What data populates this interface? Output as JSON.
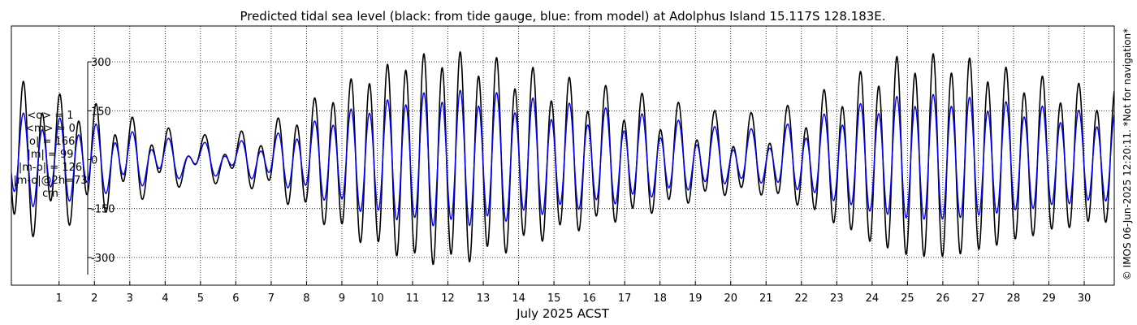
{
  "chart_data": {
    "type": "line",
    "title": "Predicted tidal sea level (black: from tide gauge, blue: from model) at Adolphus Island 15.117S 128.183E.",
    "xlabel": "July 2025 ACST",
    "ylabel": "",
    "x_ticks": [
      "1",
      "2",
      "3",
      "4",
      "5",
      "6",
      "7",
      "8",
      "9",
      "10",
      "11",
      "12",
      "13",
      "14",
      "15",
      "16",
      "17",
      "18",
      "19",
      "20",
      "21",
      "22",
      "23",
      "24",
      "25",
      "26",
      "27",
      "28",
      "29",
      "30"
    ],
    "x_range_days": [
      -0.35,
      30.85
    ],
    "y_ticks": [
      300,
      150,
      0,
      -150,
      -300
    ],
    "y_tick_labels": [
      "300",
      "150",
      "0",
      "-150",
      "-300"
    ],
    "ylim": [
      -385,
      410
    ],
    "grid": true,
    "colors": {
      "gauge": "#000000",
      "model": "#0000ff"
    },
    "series": [
      {
        "key": "gauge",
        "period_hours": 12.35,
        "diurnal_period_hours": 24.84,
        "semidiurnal_amplitude_by_day": [
          [
            -0.3,
            215
          ],
          [
            0.7,
            170
          ],
          [
            1.7,
            150
          ],
          [
            2.7,
            105
          ],
          [
            3.7,
            75
          ],
          [
            4.7,
            40
          ],
          [
            5.7,
            45
          ],
          [
            6.7,
            70
          ],
          [
            7.7,
            130
          ],
          [
            8.7,
            195
          ],
          [
            9.7,
            250
          ],
          [
            10.7,
            290
          ],
          [
            11.7,
            310
          ],
          [
            12.7,
            295
          ],
          [
            13.7,
            265
          ],
          [
            14.7,
            230
          ],
          [
            15.7,
            200
          ],
          [
            16.7,
            175
          ],
          [
            17.7,
            150
          ],
          [
            18.7,
            120
          ],
          [
            19.7,
            95
          ],
          [
            20.7,
            90
          ],
          [
            21.7,
            120
          ],
          [
            22.7,
            175
          ],
          [
            23.7,
            235
          ],
          [
            24.7,
            285
          ],
          [
            25.7,
            300
          ],
          [
            26.7,
            285
          ],
          [
            27.7,
            255
          ],
          [
            28.7,
            225
          ],
          [
            29.7,
            200
          ],
          [
            30.9,
            180
          ]
        ],
        "diurnal_amplitude_by_day": [
          [
            -0.3,
            60
          ],
          [
            4.7,
            45
          ],
          [
            10.7,
            20
          ],
          [
            13.7,
            45
          ],
          [
            20.7,
            55
          ],
          [
            25.7,
            25
          ],
          [
            30.9,
            40
          ]
        ]
      },
      {
        "key": "model",
        "period_hours": 12.35,
        "diurnal_period_hours": 24.84,
        "semidiurnal_amplitude_by_day": [
          [
            -0.3,
            125
          ],
          [
            0.7,
            110
          ],
          [
            1.7,
            95
          ],
          [
            2.7,
            70
          ],
          [
            3.7,
            50
          ],
          [
            4.7,
            30
          ],
          [
            5.7,
            30
          ],
          [
            6.7,
            45
          ],
          [
            7.7,
            80
          ],
          [
            8.7,
            120
          ],
          [
            9.7,
            155
          ],
          [
            10.7,
            180
          ],
          [
            11.7,
            195
          ],
          [
            12.7,
            190
          ],
          [
            13.7,
            175
          ],
          [
            14.7,
            155
          ],
          [
            15.7,
            140
          ],
          [
            16.7,
            125
          ],
          [
            17.7,
            105
          ],
          [
            18.7,
            85
          ],
          [
            19.7,
            65
          ],
          [
            20.7,
            60
          ],
          [
            21.7,
            80
          ],
          [
            22.7,
            115
          ],
          [
            23.7,
            150
          ],
          [
            24.7,
            175
          ],
          [
            25.7,
            185
          ],
          [
            26.7,
            175
          ],
          [
            27.7,
            160
          ],
          [
            28.7,
            145
          ],
          [
            29.7,
            130
          ],
          [
            30.9,
            120
          ]
        ],
        "diurnal_amplitude_by_day": [
          [
            -0.3,
            35
          ],
          [
            4.7,
            30
          ],
          [
            10.7,
            15
          ],
          [
            13.7,
            30
          ],
          [
            20.7,
            35
          ],
          [
            25.7,
            15
          ],
          [
            30.9,
            25
          ]
        ]
      }
    ]
  },
  "stats": [
    "<o> = 1",
    "<m> = 0",
    "|o| = 166",
    "|m| = 99",
    "|m-o| = 126",
    "|m-o|@2h=73",
    "cm"
  ],
  "credit": "© IMOS 06-Jun-2025 12:20:11. *Not for navigation*"
}
